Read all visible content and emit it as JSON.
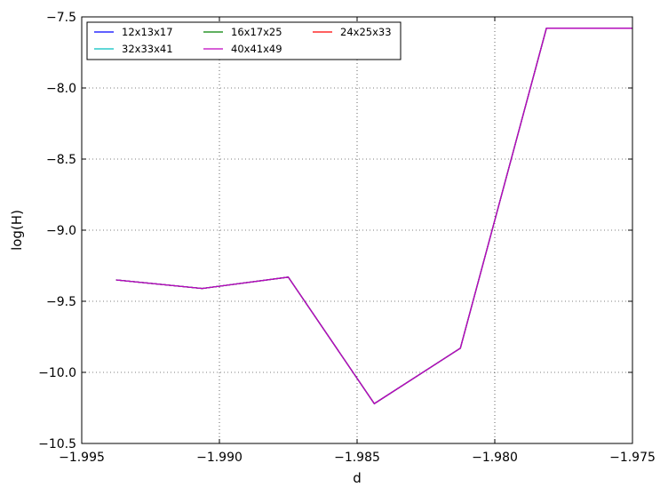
{
  "chart_data": {
    "type": "line",
    "xlabel": "d",
    "ylabel": "log(H)",
    "xlim": [
      -1.995,
      -1.975
    ],
    "ylim": [
      -10.5,
      -7.5
    ],
    "x_ticks": [
      -1.995,
      -1.99,
      -1.985,
      -1.98,
      -1.975
    ],
    "x_tick_labels": [
      "−1.995",
      "−1.990",
      "−1.985",
      "−1.980",
      "−1.975"
    ],
    "y_ticks": [
      -7.5,
      -8.0,
      -8.5,
      -9.0,
      -9.5,
      -10.0,
      -10.5
    ],
    "y_tick_labels": [
      "−7.5",
      "−8.0",
      "−8.5",
      "−9.0",
      "−9.5",
      "−10.0",
      "−10.5"
    ],
    "grid": true,
    "legend_position": "top-left",
    "legend_columns": 3,
    "x": [
      -1.99375,
      -1.990625,
      -1.9875,
      -1.984375,
      -1.98125,
      -1.978125,
      -1.975
    ],
    "series": [
      {
        "name": "12x13x17",
        "color": "#0000ff",
        "values": [
          -9.35,
          -9.41,
          -9.33,
          -10.22,
          -9.83,
          -7.58,
          -7.58
        ]
      },
      {
        "name": "16x17x25",
        "color": "#008000",
        "values": [
          -9.35,
          -9.41,
          -9.33,
          -10.22,
          -9.83,
          -7.58,
          -7.58
        ]
      },
      {
        "name": "24x25x33",
        "color": "#ff0000",
        "values": [
          -9.35,
          -9.41,
          -9.33,
          -10.22,
          -9.83,
          -7.58,
          -7.58
        ]
      },
      {
        "name": "32x33x41",
        "color": "#00bfbf",
        "values": [
          -9.35,
          -9.41,
          -9.33,
          -10.22,
          -9.83,
          -7.58,
          -7.58
        ]
      },
      {
        "name": "40x41x49",
        "color": "#bf00bf",
        "values": [
          -9.35,
          -9.41,
          -9.33,
          -10.22,
          -9.83,
          -7.58,
          -7.58
        ]
      }
    ]
  }
}
